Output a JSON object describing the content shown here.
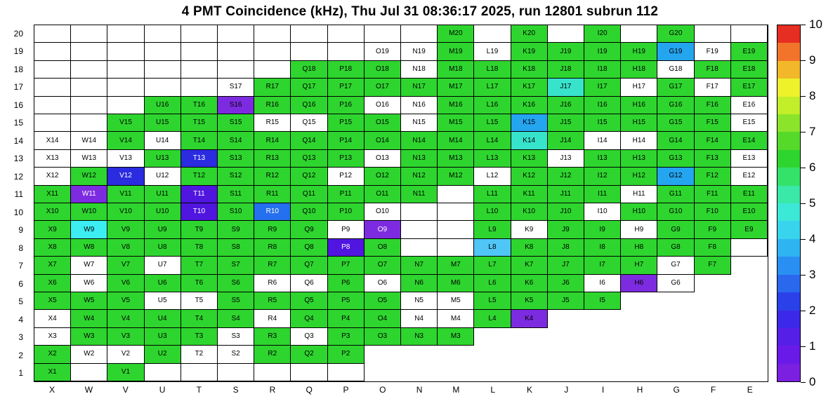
{
  "title": "4 PMT Coincidence (kHz), Thu Jul 31 08:36:17 2025, run 12801 subrun 112",
  "chart_data": {
    "type": "heatmap",
    "units": "kHz",
    "value_range": [
      0,
      10
    ],
    "x_categories": [
      "X",
      "W",
      "V",
      "U",
      "T",
      "S",
      "R",
      "Q",
      "P",
      "O",
      "N",
      "M",
      "L",
      "K",
      "J",
      "I",
      "H",
      "G",
      "F",
      "E"
    ],
    "y_categories": [
      "20",
      "19",
      "18",
      "17",
      "16",
      "15",
      "14",
      "13",
      "12",
      "11",
      "10",
      "9",
      "8",
      "7",
      "6",
      "5",
      "4",
      "3",
      "2",
      "1"
    ],
    "cell_encoding_note": "tokens per cell, column order X..E: '-' = no cell drawn, '.' = bordered empty cell (no label), other tokens = labeled cell (label is column letter + row number) filled per cell_states",
    "cell_states": {
      ".": {
        "bg": "#ffffff",
        "fg": "#000000",
        "labeled": false,
        "approx_value": null
      },
      "w": {
        "bg": "#ffffff",
        "fg": "#000000",
        "labeled": true,
        "approx_value": null
      },
      "g": {
        "bg": "#2ed52e",
        "fg": "#000000",
        "labeled": true,
        "approx_value": 5.3
      },
      "c": {
        "bg": "#38e3cc",
        "fg": "#000000",
        "labeled": true,
        "approx_value": 3.9
      },
      "bc": {
        "bg": "#3ceef2",
        "fg": "#000000",
        "labeled": true,
        "approx_value": 4.0
      },
      "lb": {
        "bg": "#4fc6f5",
        "fg": "#000000",
        "labeled": true,
        "approx_value": 3.2
      },
      "s": {
        "bg": "#24a5f0",
        "fg": "#000000",
        "labeled": true,
        "approx_value": 2.8
      },
      "b": {
        "bg": "#2470ee",
        "fg": "#ffffff",
        "labeled": true,
        "approx_value": 2.2
      },
      "db": {
        "bg": "#2b2be0",
        "fg": "#ffffff",
        "labeled": true,
        "approx_value": 1.4
      },
      "ib": {
        "bg": "#5016e0",
        "fg": "#ffffff",
        "labeled": true,
        "approx_value": 0.8
      },
      "pv": {
        "bg": "#7d2be0",
        "fg": "#ffffff",
        "labeled": true,
        "approx_value": 0.35
      },
      "pp": {
        "bg": "#7d2be0",
        "fg": "#000000",
        "labeled": true,
        "approx_value": 0.35
      }
    },
    "rows": [
      {
        "y": "20",
        "cells": [
          ".",
          ".",
          ".",
          ".",
          ".",
          ".",
          ".",
          ".",
          ".",
          ".",
          ".",
          "g",
          ".",
          "g",
          ".",
          "g",
          ".",
          "g",
          ".",
          "."
        ]
      },
      {
        "y": "19",
        "cells": [
          ".",
          ".",
          ".",
          ".",
          ".",
          ".",
          ".",
          ".",
          ".",
          "w",
          "w",
          "g",
          "w",
          "g",
          "g",
          "g",
          "g",
          "s",
          "w",
          "g"
        ]
      },
      {
        "y": "18",
        "cells": [
          ".",
          ".",
          ".",
          ".",
          ".",
          ".",
          ".",
          "g",
          "g",
          "g",
          "w",
          "g",
          "g",
          "g",
          "g",
          "g",
          "g",
          "w",
          "g",
          "g"
        ]
      },
      {
        "y": "17",
        "cells": [
          ".",
          ".",
          ".",
          ".",
          ".",
          "w",
          "g",
          "g",
          "g",
          "g",
          "g",
          "g",
          "g",
          "g",
          "c",
          "g",
          "w",
          "g",
          "w",
          "g"
        ]
      },
      {
        "y": "16",
        "cells": [
          ".",
          ".",
          ".",
          "g",
          "g",
          "pp",
          "g",
          "g",
          "g",
          "w",
          "w",
          "g",
          "g",
          "g",
          "g",
          "g",
          "g",
          "g",
          "g",
          "w"
        ]
      },
      {
        "y": "15",
        "cells": [
          ".",
          ".",
          "g",
          "g",
          "g",
          "g",
          "w",
          "w",
          "g",
          "g",
          "w",
          "g",
          "g",
          "s",
          "g",
          "g",
          "g",
          "g",
          "g",
          "w"
        ]
      },
      {
        "y": "14",
        "cells": [
          "w",
          "w",
          "g",
          "w",
          "g",
          "g",
          "g",
          "g",
          "g",
          "g",
          "g",
          "g",
          "g",
          "c",
          "g",
          "w",
          "w",
          "g",
          "g",
          "g"
        ]
      },
      {
        "y": "13",
        "cells": [
          "w",
          "w",
          "w",
          "g",
          "db",
          "g",
          "g",
          "g",
          "g",
          "w",
          "g",
          "g",
          "g",
          "g",
          "w",
          "g",
          "g",
          "g",
          "g",
          "w"
        ]
      },
      {
        "y": "12",
        "cells": [
          "w",
          "g",
          "db",
          "w",
          "g",
          "g",
          "g",
          "g",
          "w",
          "g",
          "g",
          "g",
          "w",
          "g",
          "g",
          "g",
          "g",
          "s",
          "g",
          "w"
        ]
      },
      {
        "y": "11",
        "cells": [
          "g",
          "pv",
          "g",
          "g",
          "ib",
          "g",
          "g",
          "g",
          "g",
          "g",
          "g",
          ".",
          "g",
          "g",
          "g",
          "g",
          "w",
          "g",
          "g",
          "g"
        ]
      },
      {
        "y": "10",
        "cells": [
          "g",
          "g",
          "g",
          "g",
          "ib",
          "g",
          "b",
          "g",
          "g",
          "w",
          ".",
          ".",
          "g",
          "g",
          "g",
          "w",
          "g",
          "g",
          "g",
          "g"
        ]
      },
      {
        "y": "9",
        "cells": [
          "g",
          "bc",
          "g",
          "g",
          "g",
          "g",
          "g",
          "g",
          "w",
          "pv",
          ".",
          ".",
          "g",
          "w",
          "g",
          "g",
          "w",
          "g",
          "g",
          "g"
        ]
      },
      {
        "y": "8",
        "cells": [
          "g",
          "g",
          "g",
          "g",
          "g",
          "g",
          "g",
          "g",
          "ib",
          "g",
          ".",
          ".",
          "lb",
          "g",
          "g",
          "g",
          "g",
          "g",
          "g",
          "."
        ]
      },
      {
        "y": "7",
        "cells": [
          "g",
          "w",
          "g",
          "w",
          "g",
          "g",
          "g",
          "g",
          "g",
          "g",
          "g",
          "g",
          "g",
          "g",
          "g",
          "g",
          "g",
          "w",
          "g",
          "-"
        ]
      },
      {
        "y": "6",
        "cells": [
          "g",
          "w",
          "g",
          "g",
          "g",
          "g",
          "w",
          "w",
          "g",
          "w",
          "g",
          "g",
          "g",
          "g",
          "g",
          "w",
          "pp",
          "w",
          "-",
          "-"
        ]
      },
      {
        "y": "5",
        "cells": [
          "g",
          "g",
          "g",
          "w",
          "w",
          "g",
          "g",
          "g",
          "g",
          "g",
          "w",
          "w",
          "g",
          "g",
          "g",
          "g",
          "-",
          "-",
          "-",
          "-"
        ]
      },
      {
        "y": "4",
        "cells": [
          "w",
          "g",
          "g",
          "g",
          "g",
          "g",
          "w",
          "g",
          "g",
          "g",
          "w",
          "w",
          "g",
          "pp",
          "-",
          "-",
          "-",
          "-",
          "-",
          "-"
        ]
      },
      {
        "y": "3",
        "cells": [
          "w",
          "g",
          "g",
          "g",
          "g",
          "w",
          "g",
          "w",
          "g",
          "g",
          "g",
          "g",
          "-",
          "-",
          "-",
          "-",
          "-",
          "-",
          "-",
          "-"
        ]
      },
      {
        "y": "2",
        "cells": [
          "g",
          "w",
          "w",
          "g",
          "w",
          "w",
          "g",
          "g",
          "g",
          "-",
          "-",
          "-",
          "-",
          "-",
          "-",
          "-",
          "-",
          "-",
          "-",
          "-"
        ]
      },
      {
        "y": "1",
        "cells": [
          "g",
          ".",
          "g",
          ".",
          ".",
          ".",
          ".",
          ".",
          ".",
          "-",
          "-",
          "-",
          "-",
          "-",
          "-",
          "-",
          "-",
          "-",
          "-",
          "-"
        ]
      }
    ],
    "colorbar": {
      "min": 0,
      "max": 10,
      "ticks": [
        "0",
        "1",
        "2",
        "3",
        "4",
        "5",
        "6",
        "7",
        "8",
        "9",
        "10"
      ],
      "colors_bottom_to_top": [
        "#7b1fe0",
        "#6a1ae8",
        "#551fe8",
        "#3c28e8",
        "#2a41ea",
        "#2a68ee",
        "#2a8ff2",
        "#2fb4f2",
        "#38d4ee",
        "#3ce8d6",
        "#3ae8a8",
        "#34e26a",
        "#2ed52e",
        "#55da2a",
        "#8ce42a",
        "#c2ee2a",
        "#eef22a",
        "#f2b82a",
        "#f2742a",
        "#e62e22"
      ]
    }
  }
}
